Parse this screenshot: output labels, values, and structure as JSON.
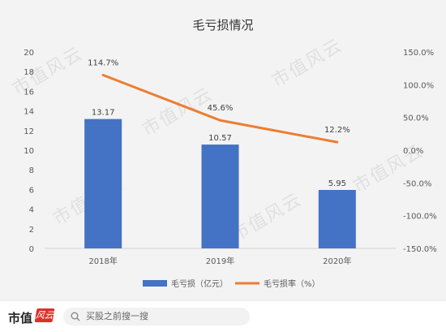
{
  "chart_data": {
    "type": "bar",
    "title": "毛亏损情况",
    "categories": [
      "2018年",
      "2019年",
      "2020年"
    ],
    "series": [
      {
        "name": "毛亏损（亿元）",
        "type": "bar",
        "axis": "left",
        "values": [
          13.17,
          10.57,
          5.95
        ],
        "labels": [
          "13.17",
          "10.57",
          "5.95"
        ],
        "color": "#4472c4"
      },
      {
        "name": "毛亏损率（%）",
        "type": "line",
        "axis": "right",
        "values": [
          114.7,
          45.6,
          12.2
        ],
        "labels": [
          "114.7%",
          "45.6%",
          "12.2%"
        ],
        "color": "#ed7d31"
      }
    ],
    "y_left": {
      "min": 0,
      "max": 20,
      "ticks": [
        "20",
        "18",
        "16",
        "14",
        "12",
        "10",
        "8",
        "6",
        "4",
        "2",
        "0"
      ]
    },
    "y_right": {
      "min": -150,
      "max": 150,
      "ticks": [
        "150.0%",
        "100.0%",
        "50.0%",
        "0.0%",
        "-50.0%",
        "-100.0%",
        "-150.0%"
      ]
    },
    "legend_position": "bottom",
    "grid": false
  },
  "watermark": "市值风云",
  "footer": {
    "brand": "市值",
    "brand_badge": "风云",
    "search_placeholder": "买股之前搜一搜"
  }
}
